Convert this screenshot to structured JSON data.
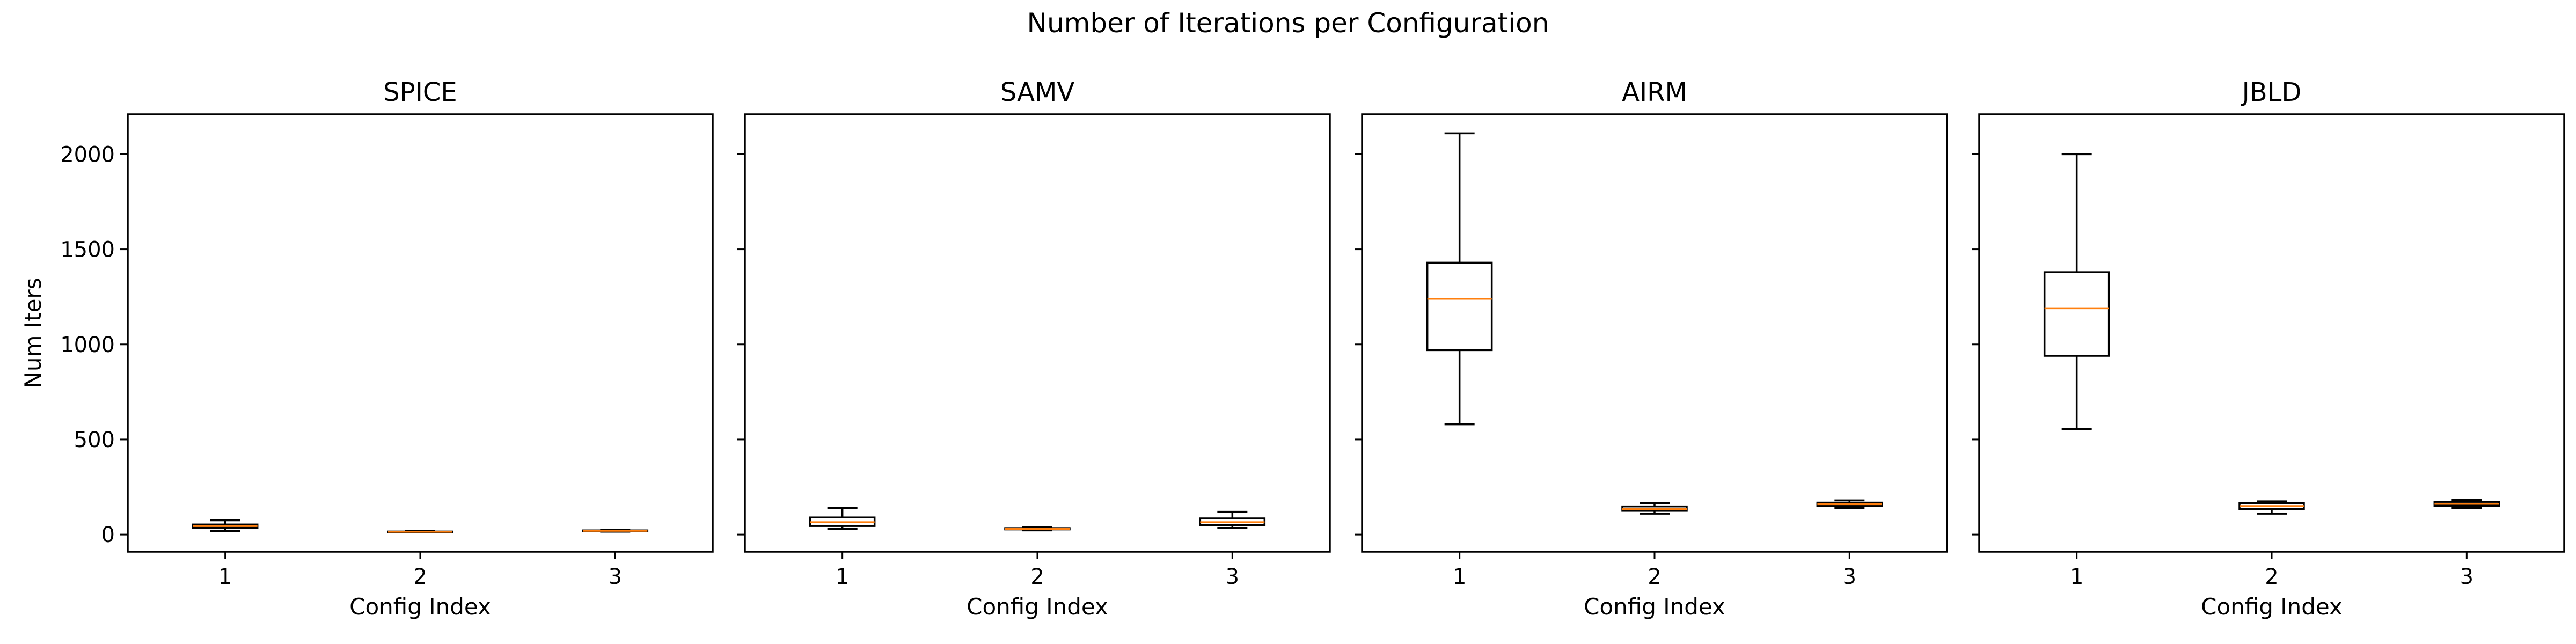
{
  "figure": {
    "suptitle": "Number of Iterations per Configuration",
    "ylabel": "Num Iters",
    "xlabel": "Config Index"
  },
  "chart_data": [
    {
      "type": "box",
      "title": "SPICE",
      "xlabel": "Config Index",
      "ylabel": "Num Iters",
      "categories": [
        "1",
        "2",
        "3"
      ],
      "ylim": [
        -90,
        2210
      ],
      "yticks": [
        0,
        500,
        1000,
        1500,
        2000
      ],
      "boxes": [
        {
          "whislo": 18,
          "q1": 36,
          "med": 45,
          "q3": 53,
          "whishi": 75
        },
        {
          "whislo": 12,
          "q1": 14,
          "med": 15,
          "q3": 16,
          "whishi": 18
        },
        {
          "whislo": 15,
          "q1": 18,
          "med": 20,
          "q3": 22,
          "whishi": 25
        }
      ]
    },
    {
      "type": "box",
      "title": "SAMV",
      "xlabel": "Config Index",
      "ylabel": "",
      "categories": [
        "1",
        "2",
        "3"
      ],
      "ylim": [
        -90,
        2210
      ],
      "yticks": [
        0,
        500,
        1000,
        1500,
        2000
      ],
      "boxes": [
        {
          "whislo": 30,
          "q1": 45,
          "med": 65,
          "q3": 90,
          "whishi": 140
        },
        {
          "whislo": 22,
          "q1": 27,
          "med": 30,
          "q3": 34,
          "whishi": 40
        },
        {
          "whislo": 35,
          "q1": 50,
          "med": 65,
          "q3": 85,
          "whishi": 120
        }
      ]
    },
    {
      "type": "box",
      "title": "AIRM",
      "xlabel": "Config Index",
      "ylabel": "",
      "categories": [
        "1",
        "2",
        "3"
      ],
      "ylim": [
        -90,
        2210
      ],
      "yticks": [
        0,
        500,
        1000,
        1500,
        2000
      ],
      "boxes": [
        {
          "whislo": 580,
          "q1": 970,
          "med": 1240,
          "q3": 1430,
          "whishi": 2110
        },
        {
          "whislo": 110,
          "q1": 125,
          "med": 135,
          "q3": 148,
          "whishi": 165
        },
        {
          "whislo": 140,
          "q1": 152,
          "med": 160,
          "q3": 168,
          "whishi": 180
        }
      ]
    },
    {
      "type": "box",
      "title": "JBLD",
      "xlabel": "Config Index",
      "ylabel": "",
      "categories": [
        "1",
        "2",
        "3"
      ],
      "ylim": [
        -90,
        2210
      ],
      "yticks": [
        0,
        500,
        1000,
        1500,
        2000
      ],
      "boxes": [
        {
          "whislo": 555,
          "q1": 940,
          "med": 1190,
          "q3": 1380,
          "whishi": 2000
        },
        {
          "whislo": 110,
          "q1": 135,
          "med": 150,
          "q3": 165,
          "whishi": 175
        },
        {
          "whislo": 140,
          "q1": 152,
          "med": 162,
          "q3": 172,
          "whishi": 182
        }
      ]
    }
  ],
  "colors": {
    "median": "#ff7f0e",
    "box_edge": "#000000",
    "background": "#ffffff"
  }
}
